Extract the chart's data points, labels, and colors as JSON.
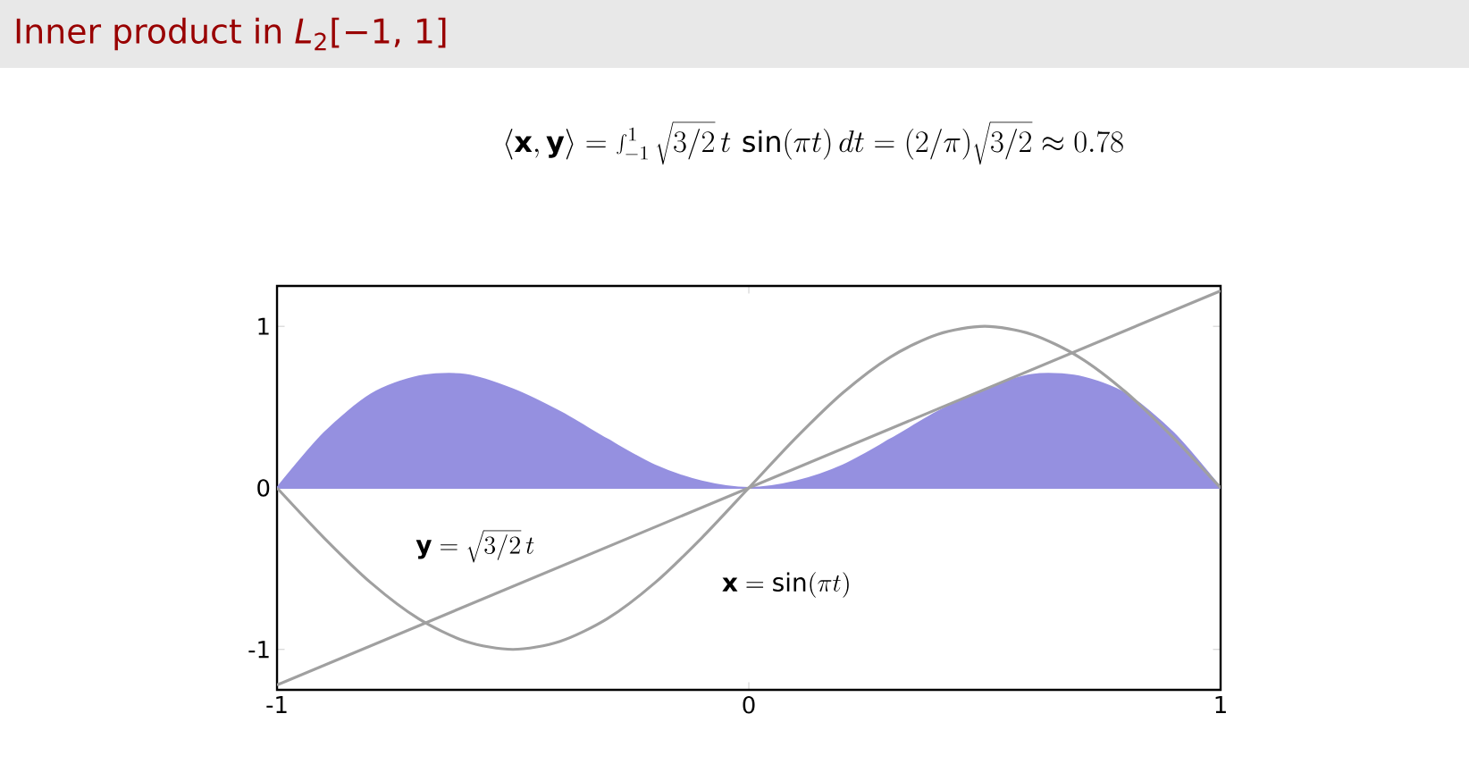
{
  "chart_data": {
    "type": "line",
    "title": "Inner product in *L*$_{2}$[−1, 1]",
    "subtitle": "\\langle \\mathbf{x},\\mathbf{y}\\rangle = \\int_{-1}^{1}\\sqrt{3/2}\\,t\\,\\sin(\\pi t)\\,dt = (2/\\pi)\\sqrt{3/2} \\approx 0.78",
    "x": [
      -1,
      -0.9,
      -0.8,
      -0.7,
      -0.6,
      -0.5,
      -0.4,
      -0.3,
      -0.2,
      -0.1,
      0,
      0.1,
      0.2,
      0.3,
      0.4,
      0.5,
      0.6,
      0.7,
      0.8,
      0.9,
      1
    ],
    "series": [
      {
        "type": "area",
        "color": "#9590e0",
        "values": [
          0,
          0.34,
          0.58,
          0.69,
          0.7,
          0.61,
          0.47,
          0.3,
          0.14,
          0.04,
          0,
          0.04,
          0.14,
          0.3,
          0.47,
          0.61,
          0.7,
          0.69,
          0.58,
          0.34,
          0
        ]
      },
      {
        "name": "\\mathbf{x} = \\sin(\\pi t)",
        "color": "#a0a0a0",
        "values": [
          0,
          -0.31,
          -0.59,
          -0.81,
          -0.95,
          -1,
          -0.95,
          -0.81,
          -0.59,
          -0.31,
          0,
          0.31,
          0.59,
          0.81,
          0.95,
          1,
          0.95,
          0.81,
          0.59,
          0.31,
          0
        ]
      },
      {
        "name": "\\mathbf{y} = \\sqrt{3/2}\\,t",
        "color": "#a0a0a0",
        "x": [
          -1,
          1
        ],
        "values": [
          -1.22,
          1.22
        ]
      }
    ],
    "xlim": [
      -1,
      1
    ],
    "ylim": [
      -1.25,
      1.25
    ],
    "xticks": [
      -1,
      0,
      1
    ],
    "yticks": [
      -1,
      0,
      1
    ],
    "grid": false
  }
}
